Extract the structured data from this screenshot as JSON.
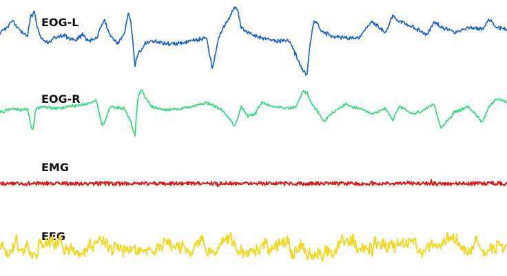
{
  "chart_data": {
    "type": "line",
    "title": "",
    "xlabel": "",
    "ylabel": "",
    "x_axis_visible": false,
    "y_axis_visible": false,
    "grid": false,
    "legend": "none",
    "series": [
      {
        "name": "EOG-L",
        "color": "#1a63d6",
        "style": "irregular, large slow deflections",
        "x": [
          0,
          10,
          20,
          30,
          40,
          45,
          50,
          55,
          60,
          70,
          80,
          90,
          100,
          110,
          120,
          130,
          140,
          148,
          152,
          160,
          170,
          180,
          186,
          190,
          196,
          200,
          210,
          220,
          240,
          260,
          280,
          300,
          308,
          315,
          320,
          330,
          340,
          345,
          350,
          360,
          370,
          380,
          400,
          420,
          440,
          446,
          450,
          456,
          460,
          466,
          470,
          480,
          500,
          520,
          540,
          560,
          570,
          580,
          600,
          620,
          630,
          640,
          660,
          680,
          700,
          710,
          720,
          736
        ],
        "y": [
          0.2,
          0.4,
          0.6,
          0.2,
          0.1,
          0.8,
          0.9,
          0.3,
          0.0,
          -0.2,
          0.0,
          0.1,
          0.0,
          -0.1,
          0.1,
          -0.1,
          0.0,
          0.5,
          0.6,
          0.1,
          -0.2,
          0.1,
          0.9,
          0.6,
          -1.0,
          -0.6,
          -0.2,
          -0.1,
          -0.2,
          -0.2,
          -0.1,
          0.0,
          -1.1,
          -0.3,
          0.2,
          0.6,
          1.1,
          1.0,
          0.4,
          0.2,
          0.1,
          0.0,
          -0.1,
          -0.1,
          -1.2,
          -1.3,
          -0.2,
          0.6,
          0.5,
          0.3,
          0.2,
          0.1,
          0.0,
          0.0,
          0.6,
          0.2,
          0.8,
          0.6,
          0.4,
          0.1,
          0.6,
          0.4,
          0.2,
          0.4,
          0.3,
          0.7,
          0.4,
          0.3
        ]
      },
      {
        "name": "EOG-R",
        "color": "#2ddc7a",
        "style": "irregular, large slow deflections",
        "x": [
          0,
          10,
          20,
          30,
          40,
          45,
          48,
          52,
          60,
          80,
          100,
          120,
          140,
          148,
          152,
          160,
          180,
          190,
          196,
          200,
          205,
          210,
          220,
          240,
          260,
          280,
          300,
          320,
          330,
          340,
          345,
          350,
          360,
          370,
          380,
          400,
          420,
          430,
          440,
          446,
          450,
          460,
          470,
          480,
          500,
          520,
          540,
          560,
          570,
          580,
          600,
          620,
          630,
          640,
          660,
          680,
          700,
          710,
          720,
          736
        ],
        "y": [
          -0.1,
          0.0,
          0.1,
          0.0,
          0.1,
          -0.8,
          -1.0,
          0.1,
          0.2,
          0.1,
          0.2,
          0.3,
          0.5,
          -0.8,
          -0.6,
          0.2,
          0.1,
          -0.6,
          -1.3,
          0.6,
          1.1,
          0.7,
          0.2,
          0.0,
          0.1,
          0.2,
          0.4,
          0.1,
          -0.3,
          -0.8,
          -0.5,
          0.2,
          -0.3,
          -0.2,
          0.4,
          0.2,
          0.1,
          0.2,
          1.0,
          0.9,
          0.5,
          0.0,
          -0.6,
          -0.2,
          0.3,
          0.1,
          -0.2,
          0.1,
          -0.5,
          0.2,
          -0.2,
          0.1,
          0.3,
          -0.9,
          -0.1,
          0.2,
          -0.6,
          0.2,
          0.6,
          0.4
        ]
      },
      {
        "name": "EMG",
        "color": "#dd1a1a",
        "style": "low-amplitude high-frequency noise",
        "x": [
          0,
          736
        ],
        "y": [
          0,
          0
        ]
      },
      {
        "name": "EEG",
        "color": "#efd92a",
        "style": "mixed-frequency irregular activity",
        "x": [
          0,
          736
        ],
        "y": [
          0,
          0
        ]
      }
    ]
  },
  "labels": {
    "eog_l": "EOG-L",
    "eog_r": "EOG-R",
    "emg": "EMG",
    "eeg": "EEG"
  }
}
